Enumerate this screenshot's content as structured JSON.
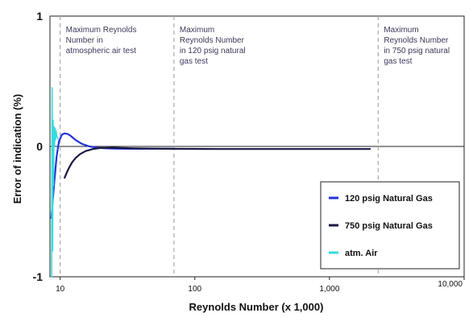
{
  "chart_data": {
    "type": "line",
    "title": "",
    "xlabel": "Reynolds Number (x 1,000)",
    "ylabel": "Error of indication (%)",
    "x_scale": "log",
    "xlim": [
      8.4,
      10000
    ],
    "ylim": [
      -1,
      1
    ],
    "x_ticks": [
      {
        "value": 10,
        "label": "10"
      },
      {
        "value": 100,
        "label": "100"
      },
      {
        "value": 1000,
        "label": "1,000"
      },
      {
        "value": 10000,
        "label": "10,000"
      }
    ],
    "y_ticks": [
      {
        "value": 1,
        "label": "1"
      },
      {
        "value": 0,
        "label": "0"
      },
      {
        "value": -1,
        "label": "-1"
      }
    ],
    "annotations": [
      {
        "x": 10,
        "lines": [
          "Maximum Reynolds",
          "Number  in",
          "atmospheric air test"
        ]
      },
      {
        "x": 70,
        "lines": [
          "Maximum",
          "Reynolds Number",
          "in 120 psig natural",
          "gas test"
        ]
      },
      {
        "x": 2300,
        "lines": [
          "Maximum",
          "Reynolds Number",
          "in 750 psig natural",
          "gas test"
        ]
      }
    ],
    "legend_position": "bottom-right",
    "series": [
      {
        "name": "120 psig Natural Gas",
        "color": "#2233dd",
        "x": [
          8.6,
          9.0,
          9.4,
          9.8,
          10.3,
          10.8,
          11.4,
          12.0,
          13.0,
          14.5,
          16.5,
          19.0,
          22.0,
          26.0,
          32.0,
          40.0,
          55.0,
          70.0
        ],
        "y": [
          -0.55,
          -0.3,
          -0.08,
          0.04,
          0.09,
          0.1,
          0.095,
          0.08,
          0.05,
          0.02,
          0.0,
          -0.01,
          -0.015,
          -0.017,
          -0.018,
          -0.018,
          -0.018,
          -0.018
        ]
      },
      {
        "name": "750 psig Natural Gas",
        "color": "#1a1a44",
        "x": [
          10.8,
          11.2,
          11.7,
          12.3,
          13.0,
          14.0,
          15.5,
          17.5,
          20.0,
          25.0,
          35.0,
          60.0,
          150.0,
          500.0,
          1000.0,
          2000.0
        ],
        "y": [
          -0.24,
          -0.2,
          -0.16,
          -0.12,
          -0.09,
          -0.06,
          -0.035,
          -0.02,
          -0.012,
          -0.01,
          -0.015,
          -0.018,
          -0.02,
          -0.02,
          -0.02,
          -0.02
        ]
      },
      {
        "name": "atm. Air",
        "color": "#33dddd",
        "x": [
          8.65,
          8.72,
          8.79,
          8.86,
          8.93,
          9.0,
          9.08,
          9.16,
          9.24,
          9.32,
          9.45,
          9.6
        ],
        "y": [
          -1.0,
          0.45,
          -0.8,
          0.2,
          -0.3,
          0.15,
          0.0,
          0.14,
          0.05,
          0.12,
          0.08,
          0.06
        ]
      }
    ]
  }
}
